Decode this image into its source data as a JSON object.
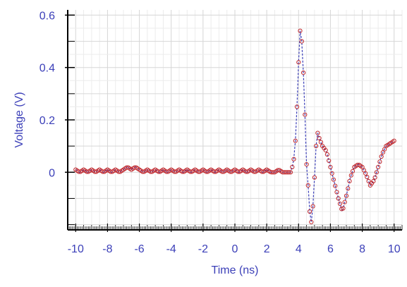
{
  "chart_data": {
    "type": "scatter",
    "xlabel": "Time (ns)",
    "ylabel": "Voltage (V)",
    "xlim": [
      -10.5,
      10.5
    ],
    "ylim": [
      -0.22,
      0.62
    ],
    "x_ticks": [
      -10,
      -8,
      -6,
      -4,
      -2,
      0,
      2,
      4,
      6,
      8,
      10
    ],
    "x_tick_labels": [
      "-10",
      "-8",
      "-6",
      "-4",
      "-2",
      "0",
      "2",
      "4",
      "6",
      "8",
      "10"
    ],
    "y_ticks": [
      0,
      0.2,
      0.4,
      0.6
    ],
    "y_tick_labels": [
      "0",
      "0.2",
      "0.4",
      "0.6"
    ],
    "grid": true,
    "legend": "none",
    "series": [
      {
        "marker": "circle",
        "line_style": "dashed",
        "marker_color": "#c0282d",
        "line_color": "#3b3fb8",
        "x": [
          -10,
          -9.75,
          -9.5,
          -9.25,
          -9,
          -8.75,
          -8.5,
          -8.25,
          -8,
          -7.75,
          -7.5,
          -7.25,
          -7,
          -6.75,
          -6.5,
          -6.25,
          -6,
          -5.75,
          -5.5,
          -5.25,
          -5,
          -4.75,
          -4.5,
          -4.25,
          -4,
          -3.75,
          -3.5,
          -3.25,
          -3,
          -2.75,
          -2.5,
          -2.25,
          -2,
          -1.75,
          -1.5,
          -1.25,
          -1,
          -0.75,
          -0.5,
          -0.25,
          0,
          0.25,
          0.5,
          0.75,
          1,
          1.25,
          1.5,
          1.75,
          2,
          2.25,
          2.5,
          2.75,
          3,
          3.25,
          3.5,
          3.6,
          3.7,
          3.8,
          3.9,
          4,
          4.1,
          4.2,
          4.3,
          4.4,
          4.5,
          4.6,
          4.7,
          4.8,
          4.9,
          5,
          5.1,
          5.2,
          5.3,
          5.5,
          5.75,
          6,
          6.25,
          6.5,
          6.75,
          7,
          7.25,
          7.5,
          7.75,
          8,
          8.25,
          8.5,
          8.75,
          9,
          9.25,
          9.5,
          9.75,
          10
        ],
        "y": [
          0.01,
          0.0,
          0.01,
          0.0,
          0.01,
          0.0,
          0.01,
          0.0,
          0.01,
          0.0,
          0.01,
          0.0,
          0.01,
          0.02,
          0.01,
          0.02,
          0.01,
          0.0,
          0.01,
          0.0,
          0.01,
          0.0,
          0.01,
          0.0,
          0.01,
          0.0,
          0.01,
          0.0,
          0.01,
          0.0,
          0.01,
          0.0,
          0.01,
          0.0,
          0.01,
          0.0,
          0.01,
          0.0,
          0.01,
          0.0,
          0.01,
          0.0,
          0.01,
          0.0,
          0.01,
          0.0,
          0.01,
          0.0,
          0.01,
          0.0,
          0.0,
          0.01,
          0.0,
          0.0,
          0.0,
          0.02,
          0.05,
          0.12,
          0.25,
          0.42,
          0.54,
          0.5,
          0.38,
          0.22,
          0.03,
          -0.05,
          -0.15,
          -0.19,
          -0.13,
          -0.02,
          0.1,
          0.15,
          0.13,
          0.1,
          0.08,
          0.02,
          -0.04,
          -0.1,
          -0.15,
          -0.09,
          -0.02,
          0.02,
          0.03,
          0.02,
          -0.01,
          -0.05,
          -0.03,
          0.02,
          0.07,
          0.1,
          0.11,
          0.12
        ]
      }
    ]
  }
}
